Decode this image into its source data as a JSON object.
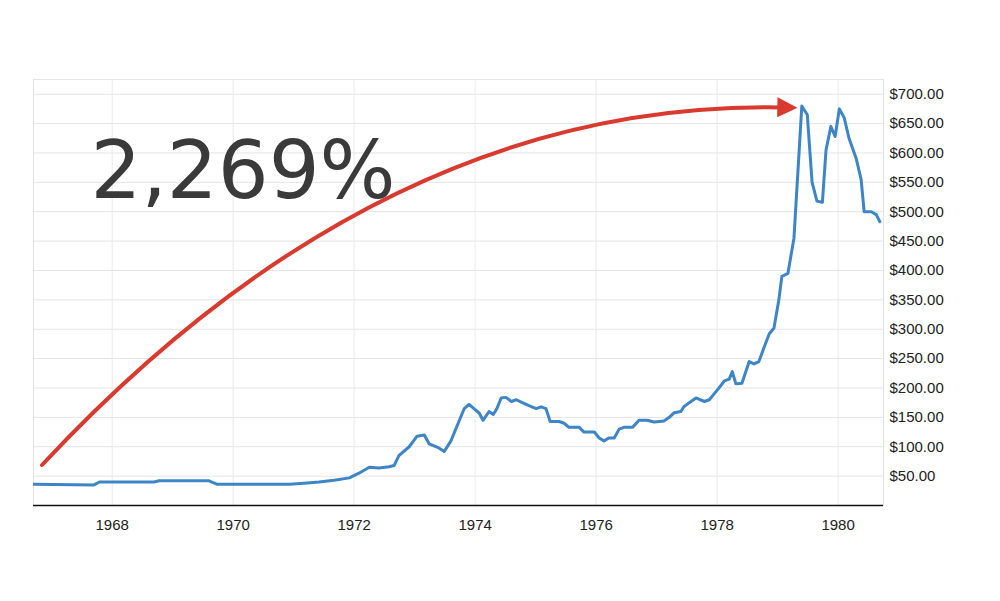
{
  "chart_data": {
    "type": "line",
    "annotation": "2,269%",
    "color": "#3d85c6",
    "grid": true,
    "x": [
      1966.68,
      1967.7,
      1967.79,
      1968.69,
      1968.78,
      1969.6,
      1969.74,
      1970.93,
      1971.17,
      1971.42,
      1971.67,
      1971.92,
      1972.08,
      1972.25,
      1972.41,
      1972.58,
      1972.66,
      1972.74,
      1972.91,
      1973.04,
      1973.16,
      1973.24,
      1973.4,
      1973.49,
      1973.6,
      1973.74,
      1973.82,
      1973.9,
      1973.98,
      1974.07,
      1974.13,
      1974.23,
      1974.3,
      1974.36,
      1974.43,
      1974.51,
      1974.6,
      1974.68,
      1974.78,
      1974.89,
      1975.01,
      1975.09,
      1975.17,
      1975.24,
      1975.39,
      1975.47,
      1975.55,
      1975.72,
      1975.8,
      1975.97,
      1976.05,
      1976.13,
      1976.21,
      1976.3,
      1976.38,
      1976.46,
      1976.6,
      1976.71,
      1976.84,
      1976.96,
      1977.12,
      1977.21,
      1977.29,
      1977.4,
      1977.45,
      1977.54,
      1977.65,
      1977.79,
      1977.87,
      1977.95,
      1978.03,
      1978.12,
      1978.2,
      1978.25,
      1978.31,
      1978.41,
      1978.53,
      1978.61,
      1978.69,
      1978.78,
      1978.86,
      1978.94,
      1979.02,
      1979.07,
      1979.17,
      1979.27,
      1979.4,
      1979.49,
      1979.57,
      1979.65,
      1979.74,
      1979.8,
      1979.88,
      1979.95,
      1980.02,
      1980.1,
      1980.18,
      1980.3,
      1980.38,
      1980.43,
      1980.55,
      1980.63,
      1980.69
    ],
    "values": [
      36,
      35,
      40,
      40,
      42,
      42,
      36,
      36,
      38,
      40,
      43,
      47,
      55,
      65,
      64,
      66,
      68,
      85,
      100,
      118,
      120,
      105,
      98,
      92,
      110,
      145,
      165,
      172,
      165,
      157,
      145,
      160,
      155,
      165,
      183,
      184,
      177,
      180,
      175,
      170,
      165,
      168,
      165,
      143,
      143,
      140,
      133,
      133,
      125,
      125,
      115,
      110,
      115,
      115,
      130,
      133,
      133,
      145,
      145,
      142,
      144,
      150,
      158,
      160,
      168,
      175,
      183,
      177,
      180,
      190,
      200,
      212,
      215,
      228,
      207,
      208,
      245,
      241,
      245,
      270,
      292,
      302,
      350,
      390,
      395,
      455,
      680,
      665,
      550,
      518,
      516,
      605,
      645,
      628,
      675,
      660,
      625,
      590,
      555,
      500,
      500,
      495,
      483
    ],
    "xlim": [
      1966.7,
      1980.75
    ],
    "xticks": [
      1968,
      1970,
      1972,
      1974,
      1976,
      1978,
      1980
    ],
    "ylim": [
      0,
      725
    ],
    "yticks": [
      {
        "value": 50,
        "label": "$50.00"
      },
      {
        "value": 100,
        "label": "$100.00"
      },
      {
        "value": 150,
        "label": "$150.00"
      },
      {
        "value": 200,
        "label": "$200.00"
      },
      {
        "value": 250,
        "label": "$250.00"
      },
      {
        "value": 300,
        "label": "$300.00"
      },
      {
        "value": 350,
        "label": "$350.00"
      },
      {
        "value": 400,
        "label": "$400.00"
      },
      {
        "value": 450,
        "label": "$450.00"
      },
      {
        "value": 500,
        "label": "$500.00"
      },
      {
        "value": 550,
        "label": "$550.00"
      },
      {
        "value": 600,
        "label": "$600.00"
      },
      {
        "value": 650,
        "label": "$650.00"
      },
      {
        "value": 700,
        "label": "$700.00"
      }
    ]
  }
}
